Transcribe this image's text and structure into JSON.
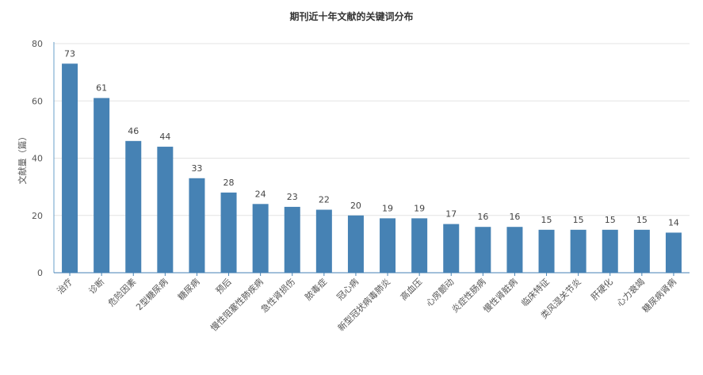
{
  "chart_data": {
    "type": "bar",
    "title": "期刊近十年文献的关键词分布",
    "xlabel": "",
    "ylabel": "文献量（篇）",
    "ylim": [
      0,
      80
    ],
    "yticks": [
      0,
      20,
      40,
      60,
      80
    ],
    "grid": true,
    "bar_color": "#4682b4",
    "categories": [
      "治疗",
      "诊断",
      "危险因素",
      "2型糖尿病",
      "糖尿病",
      "预后",
      "慢性阻塞性肺疾病",
      "急性肾损伤",
      "脓毒症",
      "冠心病",
      "新型冠状病毒肺炎",
      "高血压",
      "心房颤动",
      "炎症性肠病",
      "慢性肾脏病",
      "临床特征",
      "类风湿关节炎",
      "肝硬化",
      "心力衰竭",
      "糖尿病肾病"
    ],
    "values": [
      73,
      61,
      46,
      44,
      33,
      28,
      24,
      23,
      22,
      20,
      19,
      19,
      17,
      16,
      16,
      15,
      15,
      15,
      15,
      14
    ]
  }
}
